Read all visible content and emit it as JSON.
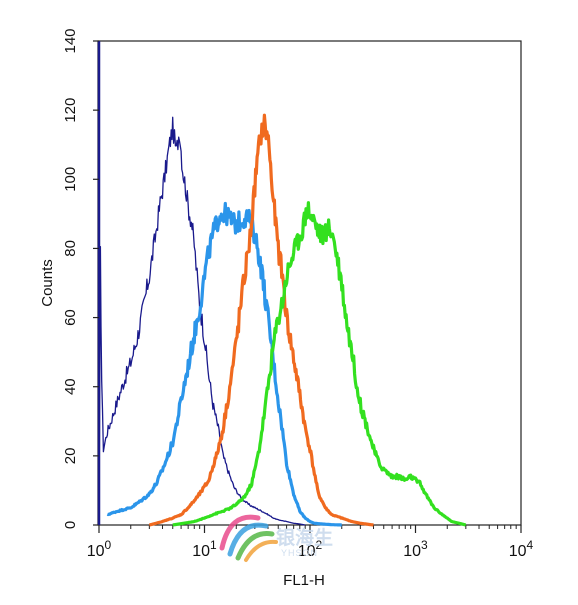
{
  "chart_data": {
    "type": "line",
    "title": "",
    "xlabel": "FL1-H",
    "ylabel": "Counts",
    "x_scale": "log",
    "xlim": [
      1,
      10000
    ],
    "ylim": [
      0,
      140
    ],
    "grid": false,
    "legend": "none",
    "x_ticks": [
      {
        "value": 1,
        "base": "10",
        "exp": "0"
      },
      {
        "value": 10,
        "base": "10",
        "exp": "1"
      },
      {
        "value": 100,
        "base": "10",
        "exp": "2"
      },
      {
        "value": 1000,
        "base": "10",
        "exp": "3"
      },
      {
        "value": 10000,
        "base": "10",
        "exp": "4"
      }
    ],
    "y_ticks": [
      "0",
      "20",
      "40",
      "60",
      "80",
      "100",
      "120",
      "140"
    ],
    "series": [
      {
        "color": "#1a1a8c",
        "x": [
          1.0,
          1.03,
          1.06,
          1.1,
          1.2,
          1.3,
          1.5,
          1.7,
          2.0,
          2.3,
          2.6,
          3.0,
          3.4,
          3.8,
          4.2,
          4.6,
          5.0,
          5.4,
          5.8,
          6.2,
          6.6,
          7.0,
          7.5,
          8.0,
          8.5,
          9.0,
          10.0,
          11.0,
          12.0,
          13.5,
          15.0,
          17.0,
          19.0,
          22.0,
          26.0,
          30.0,
          35.0,
          40.0,
          45.0,
          50.0,
          60.0,
          70.0,
          80.0,
          90.0
        ],
        "y": [
          0,
          78,
          42,
          22,
          27,
          30,
          36,
          41,
          47,
          54,
          62,
          72,
          83,
          93,
          101,
          109,
          115,
          108,
          114,
          103,
          98,
          92,
          88,
          81,
          72,
          64,
          54,
          43,
          35,
          28,
          20,
          15,
          11,
          8,
          6,
          5,
          4,
          3,
          2,
          1.5,
          1,
          0.5,
          0.3,
          0
        ]
      },
      {
        "color": "#2b95ea",
        "x": [
          1.2,
          1.5,
          2.0,
          2.5,
          3.0,
          3.5,
          4.0,
          4.5,
          5.0,
          5.5,
          6.0,
          7.0,
          8.0,
          9.0,
          10.0,
          11.0,
          12.0,
          14.0,
          16.0,
          18.0,
          20.0,
          22.0,
          24.0,
          26.0,
          28.0,
          30.0,
          32.0,
          35.0,
          38.0,
          42.0,
          46.0,
          50.0,
          55.0,
          60.0,
          70.0,
          80.0,
          90.0,
          100.0,
          110.0,
          130.0,
          160.0,
          200.0
        ],
        "y": [
          3,
          4,
          5,
          7,
          9,
          12,
          16,
          20,
          24,
          30,
          36,
          46,
          55,
          63,
          72,
          79,
          84,
          90,
          90,
          88,
          87,
          88,
          89,
          89,
          86,
          84,
          80,
          73,
          65,
          55,
          45,
          36,
          27,
          18,
          9,
          4,
          2,
          1,
          0.5,
          0.3,
          0.1,
          0
        ]
      },
      {
        "color": "#f06a1f",
        "x": [
          3.0,
          4.0,
          5.0,
          6.0,
          7.0,
          8.0,
          9.0,
          10.0,
          11.0,
          12.0,
          13.0,
          14.0,
          15.0,
          17.0,
          19.0,
          21.0,
          23.0,
          25.0,
          27.0,
          29.0,
          31.0,
          33.0,
          35.0,
          37.0,
          39.0,
          41.0,
          43.0,
          46.0,
          50.0,
          55.0,
          60.0,
          70.0,
          80.0,
          90.0,
          100.0,
          110.0,
          120.0,
          140.0,
          160.0,
          200.0,
          250.0,
          300.0,
          400.0
        ],
        "y": [
          0,
          1,
          2,
          3,
          5,
          7,
          9,
          11,
          13,
          17,
          20,
          24,
          28,
          38,
          48,
          58,
          68,
          76,
          83,
          93,
          103,
          110,
          114,
          116,
          113,
          110,
          100,
          91,
          80,
          72,
          60,
          48,
          38,
          28,
          22,
          15,
          9,
          5,
          3,
          2,
          1,
          0.5,
          0
        ]
      },
      {
        "color": "#33e01f",
        "x": [
          5.0,
          8.0,
          10.0,
          12.0,
          15.0,
          18.0,
          20.0,
          22.0,
          25.0,
          28.0,
          30.0,
          33.0,
          36.0,
          40.0,
          45.0,
          50.0,
          55.0,
          60.0,
          65.0,
          70.0,
          75.0,
          80.0,
          85.0,
          90.0,
          95.0,
          100.0,
          110.0,
          120.0,
          130.0,
          140.0,
          150.0,
          160.0,
          170.0,
          180.0,
          200.0,
          220.0,
          250.0,
          280.0,
          300.0,
          350.0,
          400.0,
          450.0,
          500.0,
          550.0,
          600.0,
          700.0,
          800.0,
          900.0,
          1000.0,
          1100.0,
          1300.0,
          1500.0,
          1800.0,
          2200.0,
          2600.0,
          3000.0
        ],
        "y": [
          0,
          1,
          2,
          3,
          4,
          5,
          6,
          7,
          9,
          12,
          16,
          22,
          30,
          40,
          52,
          60,
          65,
          72,
          76,
          79,
          81,
          84,
          86,
          89,
          92,
          90,
          88,
          85,
          84,
          84,
          86,
          85,
          82,
          78,
          70,
          60,
          50,
          40,
          35,
          28,
          22,
          18,
          16,
          15,
          14,
          14,
          13,
          14,
          13,
          12,
          8,
          5,
          3,
          1,
          0.5,
          0
        ]
      }
    ]
  },
  "watermark": {
    "text": "银海生",
    "subtext": "YHSON",
    "colors": [
      "#e94c8c",
      "#3aa0e0",
      "#57b848",
      "#f2a33b"
    ]
  }
}
